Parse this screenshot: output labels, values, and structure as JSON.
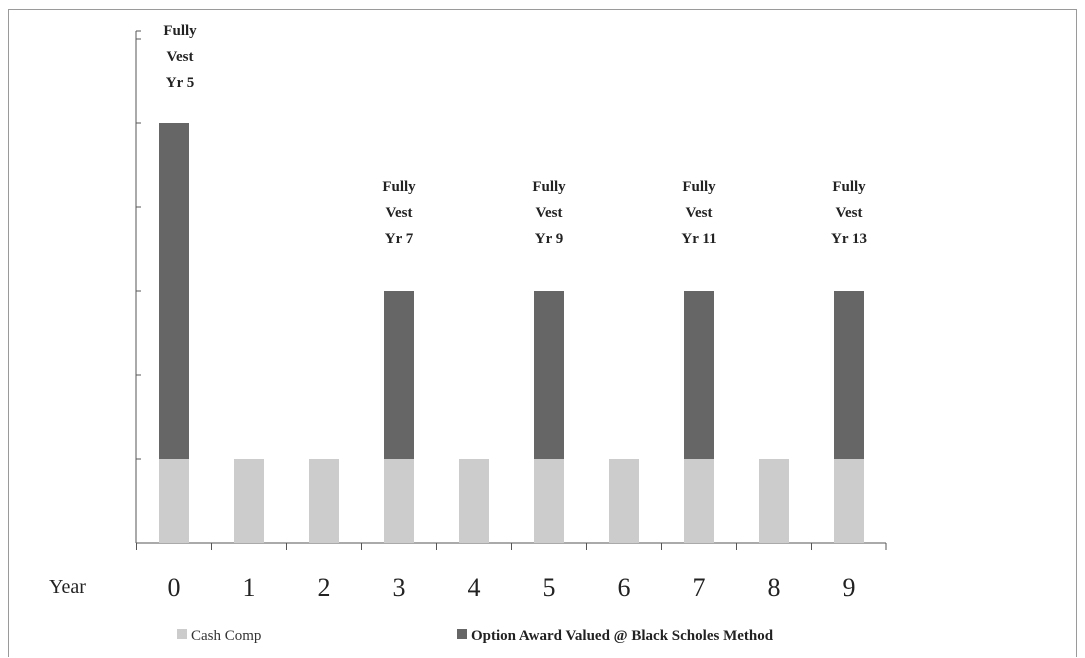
{
  "chart_data": {
    "type": "bar",
    "stacked": true,
    "xlabel": "Year",
    "categories": [
      "0",
      "1",
      "2",
      "3",
      "4",
      "5",
      "6",
      "7",
      "8",
      "9"
    ],
    "ylim": [
      0,
      6
    ],
    "y_ticks": [
      0,
      1,
      2,
      3,
      4,
      5,
      6
    ],
    "y_tick_labels_shown": false,
    "grid": false,
    "legend_placement": "bottom",
    "series": [
      {
        "name": "Cash Comp",
        "color": "#cccccc",
        "values": [
          1,
          1,
          1,
          1,
          1,
          1,
          1,
          1,
          1,
          1
        ]
      },
      {
        "name": "Option Award Valued @ Black Scholes Method",
        "color": "#666666",
        "values": [
          4,
          0,
          0,
          2,
          0,
          2,
          0,
          2,
          0,
          2
        ]
      }
    ],
    "annotations": [
      {
        "category": "0",
        "lines": [
          "Fully",
          "Vest",
          "Yr 5"
        ]
      },
      {
        "category": "3",
        "lines": [
          "Fully",
          "Vest",
          "Yr 7"
        ]
      },
      {
        "category": "5",
        "lines": [
          "Fully",
          "Vest",
          "Yr 9"
        ]
      },
      {
        "category": "7",
        "lines": [
          "Fully",
          "Vest",
          "Yr 11"
        ]
      },
      {
        "category": "9",
        "lines": [
          "Fully",
          "Vest",
          "Yr 13"
        ]
      }
    ]
  }
}
